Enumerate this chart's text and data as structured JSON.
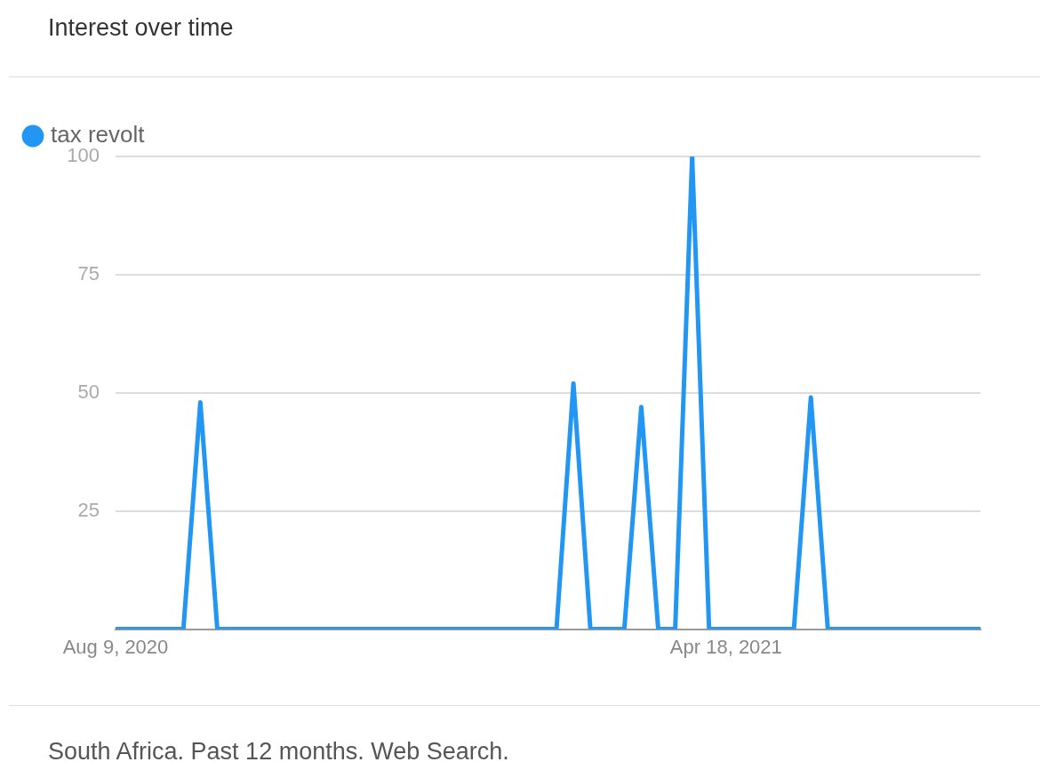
{
  "chart_data": {
    "type": "line",
    "title": "Interest over time",
    "categories": [
      "Aug 9, 2020",
      null,
      null,
      null,
      null,
      null,
      null,
      null,
      null,
      null,
      null,
      null,
      null,
      null,
      null,
      null,
      null,
      null,
      null,
      null,
      null,
      null,
      null,
      null,
      null,
      null,
      null,
      null,
      null,
      null,
      null,
      null,
      null,
      null,
      null,
      null,
      "Apr 18, 2021",
      null,
      null,
      null,
      null,
      null,
      null,
      null,
      null,
      null,
      null,
      null,
      null,
      null,
      null,
      null
    ],
    "series": [
      {
        "name": "tax revolt",
        "color": "#2196f3",
        "values": [
          0,
          0,
          0,
          0,
          0,
          48,
          0,
          0,
          0,
          0,
          0,
          0,
          0,
          0,
          0,
          0,
          0,
          0,
          0,
          0,
          0,
          0,
          0,
          0,
          0,
          0,
          0,
          52,
          0,
          0,
          0,
          47,
          0,
          0,
          100,
          0,
          0,
          0,
          0,
          0,
          0,
          49,
          0,
          0,
          0,
          0,
          0,
          0,
          0,
          0,
          0,
          0
        ]
      }
    ],
    "ylim": [
      0,
      100
    ],
    "yticks": [
      {
        "value": 0,
        "label": null
      },
      25,
      50,
      75,
      100
    ],
    "grid": "y",
    "legend": "top left",
    "marker": "none",
    "line_style": "solid",
    "annotations": [
      "South Africa. Past 12 months. Web Search."
    ]
  }
}
